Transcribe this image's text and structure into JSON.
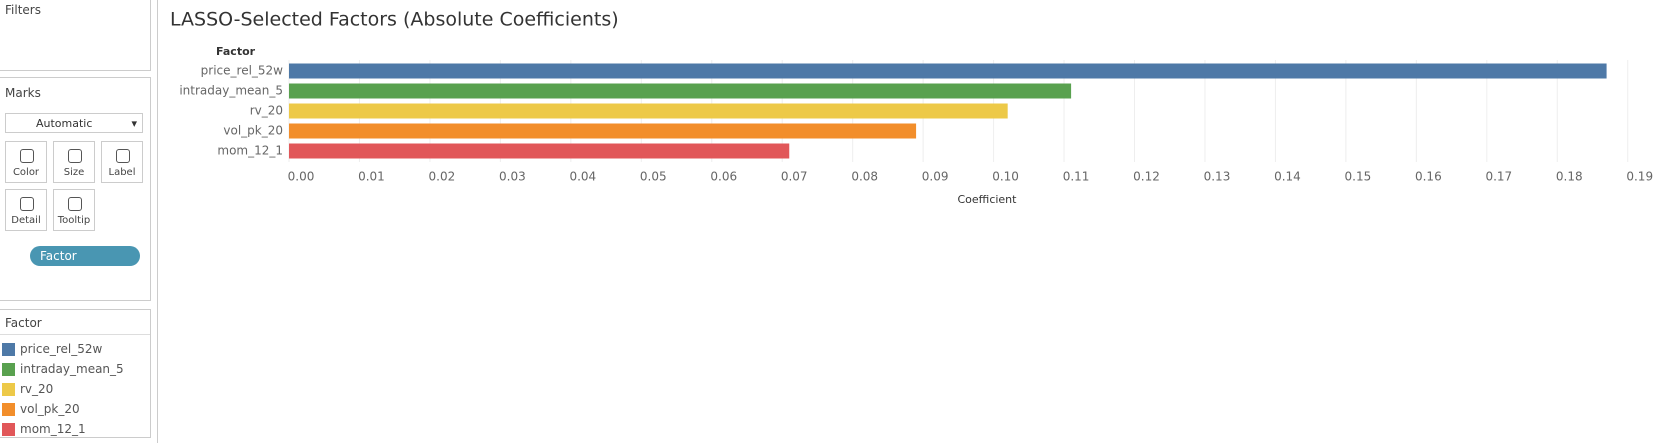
{
  "sidebar": {
    "filters_title": "Filters",
    "marks_title": "Marks",
    "mark_type": "Automatic",
    "buttons": [
      "Color",
      "Size",
      "Label",
      "Detail",
      "Tooltip"
    ],
    "pill": "Factor",
    "legend_title": "Factor"
  },
  "chart_data": {
    "type": "bar",
    "orientation": "horizontal",
    "title": "LASSO-Selected Factors (Absolute Coefficients)",
    "y_label": "Factor",
    "x_label": "Coefficient",
    "categories": [
      "price_rel_52w",
      "intraday_mean_5",
      "rv_20",
      "vol_pk_20",
      "mom_12_1"
    ],
    "values": [
      0.187,
      0.111,
      0.102,
      0.089,
      0.071
    ],
    "colors": [
      "#4e79a7",
      "#59a14f",
      "#edc948",
      "#f28e2b",
      "#e15759"
    ],
    "xlim": [
      0,
      0.196
    ],
    "xticks": [
      {
        "value": 0,
        "label": "0.00"
      },
      {
        "value": 0.01,
        "label": "0.01"
      },
      {
        "value": 0.02,
        "label": "0.02"
      },
      {
        "value": 0.03,
        "label": "0.03"
      },
      {
        "value": 0.04,
        "label": "0.04"
      },
      {
        "value": 0.05,
        "label": "0.05"
      },
      {
        "value": 0.06,
        "label": "0.06"
      },
      {
        "value": 0.07,
        "label": "0.07"
      },
      {
        "value": 0.08,
        "label": "0.08"
      },
      {
        "value": 0.09,
        "label": "0.09"
      },
      {
        "value": 0.1,
        "label": "0.10"
      },
      {
        "value": 0.11,
        "label": "0.11"
      },
      {
        "value": 0.12,
        "label": "0.12"
      },
      {
        "value": 0.13,
        "label": "0.13"
      },
      {
        "value": 0.14,
        "label": "0.14"
      },
      {
        "value": 0.15,
        "label": "0.15"
      },
      {
        "value": 0.16,
        "label": "0.16"
      },
      {
        "value": 0.17,
        "label": "0.17"
      },
      {
        "value": 0.18,
        "label": "0.18"
      },
      {
        "value": 0.19,
        "label": "0.19"
      }
    ],
    "grid": true
  }
}
